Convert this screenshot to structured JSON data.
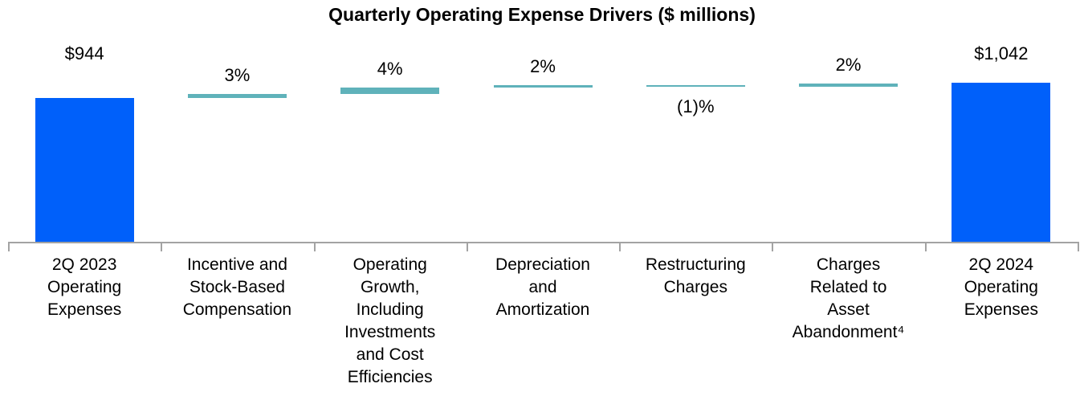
{
  "chart_data": {
    "type": "bar",
    "subtype": "waterfall",
    "title": "Quarterly Operating Expense Drivers ($ millions)",
    "unit": "$ millions",
    "start_value": 944,
    "end_value": 1042,
    "grid": false,
    "legend": null,
    "colors": {
      "total_bar": "#0060FA",
      "delta_bar": "#5FB2BA",
      "axis": "#A3A3A3",
      "text": "#000000"
    },
    "bars": [
      {
        "category": "2Q 2023\nOperating\nExpenses",
        "kind": "total",
        "value": 944,
        "label": "$944"
      },
      {
        "category": "Incentive and\nStock-Based\nCompensation",
        "kind": "delta",
        "pct": 3,
        "label": "3%",
        "label_position": "above"
      },
      {
        "category": "Operating\nGrowth,\nIncluding\nInvestments\nand Cost\nEfficiencies",
        "kind": "delta",
        "pct": 4,
        "label": "4%",
        "label_position": "above"
      },
      {
        "category": "Depreciation\nand\nAmortization",
        "kind": "delta",
        "pct": 2,
        "label": "2%",
        "label_position": "above"
      },
      {
        "category": "Restructuring\nCharges",
        "kind": "delta",
        "pct": -1,
        "label": "(1)%",
        "label_position": "below"
      },
      {
        "category": "Charges\nRelated to\nAsset\nAbandonment⁴",
        "kind": "delta",
        "pct": 2,
        "label": "2%",
        "label_position": "above"
      },
      {
        "category": "2Q 2024\nOperating\nExpenses",
        "kind": "total",
        "value": 1042,
        "label": "$1,042"
      }
    ]
  }
}
